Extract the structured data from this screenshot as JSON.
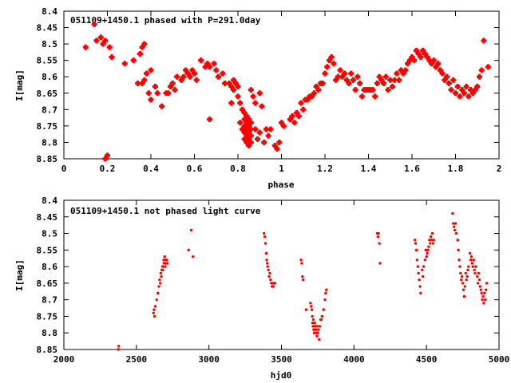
{
  "colors": {
    "points": "#ff0000",
    "axes": "#000000",
    "background": "#ffffff"
  },
  "chart_data": [
    {
      "type": "scatter",
      "title": "051109+1450.1 phased with P=291.0day",
      "xlabel": "phase",
      "ylabel": "I[mag]",
      "xlim": [
        0,
        2
      ],
      "ylim": [
        8.4,
        8.85
      ],
      "y_inverted": true,
      "grid": false,
      "xticks": [
        0,
        0.2,
        0.4,
        0.6,
        0.8,
        1,
        1.2,
        1.4,
        1.6,
        1.8,
        2
      ],
      "xtick_labels": [
        "0",
        "0.2",
        "0.4",
        "0.6",
        "0.8",
        "1",
        "1.2",
        "1.4",
        "1.6",
        "1.8",
        "2"
      ],
      "yticks": [
        8.4,
        8.45,
        8.5,
        8.55,
        8.6,
        8.65,
        8.7,
        8.75,
        8.8,
        8.85
      ],
      "ytick_labels": [
        "8.4",
        "8.45",
        "8.5",
        "8.55",
        "8.6",
        "8.65",
        "8.7",
        "8.75",
        "8.8",
        "8.85"
      ],
      "marker": "star",
      "points": [
        [
          0.1,
          8.51
        ],
        [
          0.14,
          8.44
        ],
        [
          0.15,
          8.49
        ],
        [
          0.17,
          8.48
        ],
        [
          0.18,
          8.5
        ],
        [
          0.19,
          8.49
        ],
        [
          0.19,
          8.85
        ],
        [
          0.2,
          8.84
        ],
        [
          0.21,
          8.51
        ],
        [
          0.22,
          8.54
        ],
        [
          0.28,
          8.56
        ],
        [
          0.32,
          8.55
        ],
        [
          0.34,
          8.62
        ],
        [
          0.35,
          8.53
        ],
        [
          0.36,
          8.51
        ],
        [
          0.37,
          8.5
        ],
        [
          0.36,
          8.62
        ],
        [
          0.37,
          8.61
        ],
        [
          0.38,
          8.59
        ],
        [
          0.39,
          8.65
        ],
        [
          0.4,
          8.58
        ],
        [
          0.4,
          8.67
        ],
        [
          0.42,
          8.63
        ],
        [
          0.43,
          8.65
        ],
        [
          0.45,
          8.69
        ],
        [
          0.47,
          8.65
        ],
        [
          0.48,
          8.65
        ],
        [
          0.49,
          8.63
        ],
        [
          0.5,
          8.62
        ],
        [
          0.51,
          8.64
        ],
        [
          0.52,
          8.6
        ],
        [
          0.54,
          8.61
        ],
        [
          0.55,
          8.6
        ],
        [
          0.56,
          8.58
        ],
        [
          0.57,
          8.59
        ],
        [
          0.58,
          8.6
        ],
        [
          0.59,
          8.58
        ],
        [
          0.6,
          8.59
        ],
        [
          0.61,
          8.61
        ],
        [
          0.63,
          8.55
        ],
        [
          0.65,
          8.57
        ],
        [
          0.66,
          8.56
        ],
        [
          0.67,
          8.57
        ],
        [
          0.67,
          8.73
        ],
        [
          0.69,
          8.56
        ],
        [
          0.7,
          8.58
        ],
        [
          0.71,
          8.6
        ],
        [
          0.73,
          8.59
        ],
        [
          0.74,
          8.62
        ],
        [
          0.76,
          8.62
        ],
        [
          0.77,
          8.63
        ],
        [
          0.78,
          8.61
        ],
        [
          0.78,
          8.64
        ],
        [
          0.77,
          8.68
        ],
        [
          0.79,
          8.62
        ],
        [
          0.8,
          8.63
        ],
        [
          0.8,
          8.66
        ],
        [
          0.81,
          8.68
        ],
        [
          0.82,
          8.7
        ],
        [
          0.81,
          8.74
        ],
        [
          0.82,
          8.76
        ],
        [
          0.83,
          8.71
        ],
        [
          0.83,
          8.73
        ],
        [
          0.83,
          8.75
        ],
        [
          0.83,
          8.77
        ],
        [
          0.83,
          8.79
        ],
        [
          0.84,
          8.72
        ],
        [
          0.84,
          8.74
        ],
        [
          0.84,
          8.76
        ],
        [
          0.84,
          8.78
        ],
        [
          0.84,
          8.8
        ],
        [
          0.85,
          8.73
        ],
        [
          0.85,
          8.75
        ],
        [
          0.85,
          8.77
        ],
        [
          0.85,
          8.79
        ],
        [
          0.85,
          8.81
        ],
        [
          0.86,
          8.74
        ],
        [
          0.86,
          8.76
        ],
        [
          0.86,
          8.78
        ],
        [
          0.86,
          8.8
        ],
        [
          0.86,
          8.64
        ],
        [
          0.87,
          8.66
        ],
        [
          0.88,
          8.68
        ],
        [
          0.88,
          8.76
        ],
        [
          0.89,
          8.79
        ],
        [
          0.9,
          8.77
        ],
        [
          0.9,
          8.65
        ],
        [
          0.91,
          8.69
        ],
        [
          0.92,
          8.8
        ],
        [
          0.93,
          8.76
        ],
        [
          0.94,
          8.78
        ],
        [
          0.95,
          8.76
        ],
        [
          0.97,
          8.81
        ],
        [
          0.98,
          8.82
        ],
        [
          0.99,
          8.8
        ],
        [
          1.0,
          8.74
        ],
        [
          1.01,
          8.75
        ],
        [
          1.04,
          8.73
        ],
        [
          1.05,
          8.72
        ],
        [
          1.06,
          8.74
        ],
        [
          1.07,
          8.71
        ],
        [
          1.08,
          8.72
        ],
        [
          1.09,
          8.68
        ],
        [
          1.1,
          8.7
        ],
        [
          1.11,
          8.67
        ],
        [
          1.12,
          8.67
        ],
        [
          1.13,
          8.66
        ],
        [
          1.14,
          8.66
        ],
        [
          1.15,
          8.65
        ],
        [
          1.16,
          8.63
        ],
        [
          1.17,
          8.64
        ],
        [
          1.18,
          8.62
        ],
        [
          1.19,
          8.62
        ],
        [
          1.2,
          8.59
        ],
        [
          1.21,
          8.57
        ],
        [
          1.22,
          8.55
        ],
        [
          1.23,
          8.54
        ],
        [
          1.24,
          8.56
        ],
        [
          1.25,
          8.61
        ],
        [
          1.26,
          8.6
        ],
        [
          1.27,
          8.58
        ],
        [
          1.28,
          8.6
        ],
        [
          1.29,
          8.59
        ],
        [
          1.3,
          8.61
        ],
        [
          1.31,
          8.62
        ],
        [
          1.32,
          8.59
        ],
        [
          1.33,
          8.61
        ],
        [
          1.34,
          8.64
        ],
        [
          1.35,
          8.6
        ],
        [
          1.36,
          8.62
        ],
        [
          1.37,
          8.66
        ],
        [
          1.38,
          8.64
        ],
        [
          1.39,
          8.64
        ],
        [
          1.4,
          8.64
        ],
        [
          1.41,
          8.64
        ],
        [
          1.42,
          8.64
        ],
        [
          1.43,
          8.66
        ],
        [
          1.44,
          8.62
        ],
        [
          1.45,
          8.6
        ],
        [
          1.46,
          8.61
        ],
        [
          1.47,
          8.62
        ],
        [
          1.48,
          8.6
        ],
        [
          1.49,
          8.64
        ],
        [
          1.5,
          8.61
        ],
        [
          1.51,
          8.63
        ],
        [
          1.52,
          8.61
        ],
        [
          1.53,
          8.59
        ],
        [
          1.54,
          8.61
        ],
        [
          1.55,
          8.58
        ],
        [
          1.56,
          8.59
        ],
        [
          1.57,
          8.58
        ],
        [
          1.58,
          8.56
        ],
        [
          1.59,
          8.55
        ],
        [
          1.6,
          8.54
        ],
        [
          1.61,
          8.55
        ],
        [
          1.62,
          8.52
        ],
        [
          1.63,
          8.53
        ],
        [
          1.64,
          8.54
        ],
        [
          1.65,
          8.52
        ],
        [
          1.66,
          8.53
        ],
        [
          1.67,
          8.54
        ],
        [
          1.68,
          8.55
        ],
        [
          1.69,
          8.56
        ],
        [
          1.7,
          8.55
        ],
        [
          1.71,
          8.57
        ],
        [
          1.72,
          8.56
        ],
        [
          1.73,
          8.58
        ],
        [
          1.74,
          8.59
        ],
        [
          1.75,
          8.61
        ],
        [
          1.76,
          8.6
        ],
        [
          1.77,
          8.62
        ],
        [
          1.78,
          8.64
        ],
        [
          1.79,
          8.61
        ],
        [
          1.8,
          8.65
        ],
        [
          1.81,
          8.63
        ],
        [
          1.82,
          8.66
        ],
        [
          1.83,
          8.64
        ],
        [
          1.84,
          8.65
        ],
        [
          1.85,
          8.63
        ],
        [
          1.86,
          8.66
        ],
        [
          1.87,
          8.64
        ],
        [
          1.88,
          8.65
        ],
        [
          1.89,
          8.64
        ],
        [
          1.9,
          8.63
        ],
        [
          1.91,
          8.6
        ],
        [
          1.92,
          8.58
        ],
        [
          1.93,
          8.49
        ],
        [
          1.95,
          8.57
        ]
      ]
    },
    {
      "type": "scatter",
      "title": "051109+1450.1 not phased light curve",
      "xlabel": "hjd0",
      "ylabel": "I[mag]",
      "xlim": [
        2000,
        5000
      ],
      "ylim": [
        8.4,
        8.85
      ],
      "y_inverted": true,
      "grid": false,
      "xticks": [
        2000,
        2500,
        3000,
        3500,
        4000,
        4500,
        5000
      ],
      "xtick_labels": [
        "2000",
        "2500",
        "3000",
        "3500",
        "4000",
        "4500",
        "5000"
      ],
      "yticks": [
        8.4,
        8.45,
        8.5,
        8.55,
        8.6,
        8.65,
        8.7,
        8.75,
        8.8,
        8.85
      ],
      "ytick_labels": [
        "8.4",
        "8.45",
        "8.5",
        "8.55",
        "8.6",
        "8.65",
        "8.7",
        "8.75",
        "8.8",
        "8.85"
      ],
      "marker": "dot",
      "points": [
        [
          2375,
          8.85
        ],
        [
          2378,
          8.84
        ],
        [
          2618,
          8.74
        ],
        [
          2622,
          8.73
        ],
        [
          2625,
          8.75
        ],
        [
          2630,
          8.72
        ],
        [
          2640,
          8.7
        ],
        [
          2648,
          8.68
        ],
        [
          2655,
          8.66
        ],
        [
          2660,
          8.64
        ],
        [
          2665,
          8.65
        ],
        [
          2668,
          8.62
        ],
        [
          2672,
          8.63
        ],
        [
          2675,
          8.61
        ],
        [
          2680,
          8.6
        ],
        [
          2683,
          8.61
        ],
        [
          2688,
          8.58
        ],
        [
          2690,
          8.59
        ],
        [
          2695,
          8.57
        ],
        [
          2698,
          8.6
        ],
        [
          2700,
          8.58
        ],
        [
          2703,
          8.59
        ],
        [
          2710,
          8.58
        ],
        [
          2712,
          8.59
        ],
        [
          2860,
          8.55
        ],
        [
          2878,
          8.49
        ],
        [
          2890,
          8.57
        ],
        [
          3380,
          8.5
        ],
        [
          3385,
          8.51
        ],
        [
          3390,
          8.53
        ],
        [
          3395,
          8.56
        ],
        [
          3398,
          8.58
        ],
        [
          3402,
          8.59
        ],
        [
          3405,
          8.6
        ],
        [
          3410,
          8.61
        ],
        [
          3415,
          8.63
        ],
        [
          3420,
          8.62
        ],
        [
          3425,
          8.64
        ],
        [
          3430,
          8.65
        ],
        [
          3435,
          8.66
        ],
        [
          3440,
          8.65
        ],
        [
          3445,
          8.66
        ],
        [
          3450,
          8.65
        ],
        [
          3455,
          8.65
        ],
        [
          3635,
          8.58
        ],
        [
          3640,
          8.59
        ],
        [
          3645,
          8.63
        ],
        [
          3650,
          8.64
        ],
        [
          3670,
          8.73
        ],
        [
          3700,
          8.71
        ],
        [
          3705,
          8.72
        ],
        [
          3710,
          8.73
        ],
        [
          3712,
          8.75
        ],
        [
          3715,
          8.77
        ],
        [
          3718,
          8.78
        ],
        [
          3720,
          8.76
        ],
        [
          3722,
          8.79
        ],
        [
          3725,
          8.8
        ],
        [
          3728,
          8.78
        ],
        [
          3730,
          8.77
        ],
        [
          3732,
          8.79
        ],
        [
          3735,
          8.78
        ],
        [
          3738,
          8.8
        ],
        [
          3740,
          8.79
        ],
        [
          3745,
          8.81
        ],
        [
          3748,
          8.78
        ],
        [
          3750,
          8.8
        ],
        [
          3755,
          8.79
        ],
        [
          3760,
          8.82
        ],
        [
          3765,
          8.78
        ],
        [
          3770,
          8.76
        ],
        [
          3775,
          8.76
        ],
        [
          3780,
          8.75
        ],
        [
          3790,
          8.73
        ],
        [
          3800,
          8.7
        ],
        [
          3805,
          8.68
        ],
        [
          3810,
          8.67
        ],
        [
          4160,
          8.5
        ],
        [
          4165,
          8.51
        ],
        [
          4170,
          8.5
        ],
        [
          4175,
          8.53
        ],
        [
          4180,
          8.59
        ],
        [
          4420,
          8.52
        ],
        [
          4425,
          8.53
        ],
        [
          4430,
          8.55
        ],
        [
          4435,
          8.58
        ],
        [
          4440,
          8.6
        ],
        [
          4445,
          8.62
        ],
        [
          4450,
          8.64
        ],
        [
          4455,
          8.66
        ],
        [
          4460,
          8.68
        ],
        [
          4470,
          8.61
        ],
        [
          4475,
          8.63
        ],
        [
          4480,
          8.6
        ],
        [
          4490,
          8.58
        ],
        [
          4495,
          8.55
        ],
        [
          4500,
          8.57
        ],
        [
          4505,
          8.56
        ],
        [
          4510,
          8.55
        ],
        [
          4515,
          8.54
        ],
        [
          4520,
          8.52
        ],
        [
          4525,
          8.53
        ],
        [
          4530,
          8.51
        ],
        [
          4535,
          8.52
        ],
        [
          4540,
          8.5
        ],
        [
          4545,
          8.53
        ],
        [
          4550,
          8.52
        ],
        [
          4680,
          8.44
        ],
        [
          4685,
          8.47
        ],
        [
          4690,
          8.48
        ],
        [
          4695,
          8.49
        ],
        [
          4700,
          8.47
        ],
        [
          4705,
          8.5
        ],
        [
          4715,
          8.52
        ],
        [
          4720,
          8.55
        ],
        [
          4725,
          8.58
        ],
        [
          4730,
          8.6
        ],
        [
          4735,
          8.62
        ],
        [
          4740,
          8.64
        ],
        [
          4745,
          8.63
        ],
        [
          4750,
          8.65
        ],
        [
          4755,
          8.67
        ],
        [
          4760,
          8.69
        ],
        [
          4765,
          8.66
        ],
        [
          4770,
          8.62
        ],
        [
          4775,
          8.64
        ],
        [
          4780,
          8.63
        ],
        [
          4785,
          8.61
        ],
        [
          4790,
          8.6
        ],
        [
          4800,
          8.56
        ],
        [
          4805,
          8.58
        ],
        [
          4810,
          8.57
        ],
        [
          4815,
          8.59
        ],
        [
          4820,
          8.6
        ],
        [
          4825,
          8.58
        ],
        [
          4830,
          8.61
        ],
        [
          4835,
          8.62
        ],
        [
          4840,
          8.6
        ],
        [
          4850,
          8.63
        ],
        [
          4855,
          8.65
        ],
        [
          4860,
          8.62
        ],
        [
          4865,
          8.64
        ],
        [
          4870,
          8.66
        ],
        [
          4875,
          8.67
        ],
        [
          4880,
          8.68
        ],
        [
          4885,
          8.7
        ],
        [
          4890,
          8.69
        ],
        [
          4895,
          8.71
        ],
        [
          4900,
          8.68
        ],
        [
          4905,
          8.7
        ],
        [
          4910,
          8.67
        ],
        [
          4915,
          8.65
        ]
      ]
    }
  ]
}
